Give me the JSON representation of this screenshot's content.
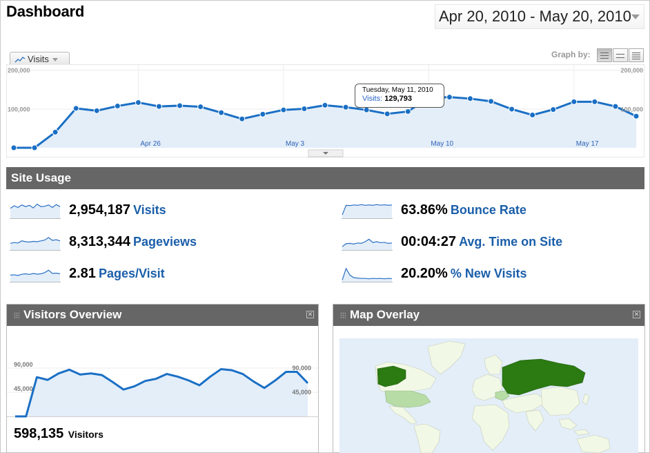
{
  "header": {
    "title": "Dashboard",
    "date_range": "Apr 20, 2010 - May 20, 2010"
  },
  "graph": {
    "metric_tab": "Visits",
    "graph_by_label": "Graph by:",
    "graph_by_options": [
      "day",
      "week",
      "month"
    ],
    "selected_graph_by": "day",
    "tooltip": {
      "date": "Tuesday, May 11, 2010",
      "metric": "Visits:",
      "value": "129,793"
    }
  },
  "chart_data": [
    {
      "type": "area",
      "name": "main-visits",
      "x": [
        "Apr 20",
        "Apr 21",
        "Apr 22",
        "Apr 23",
        "Apr 24",
        "Apr 25",
        "Apr 26",
        "Apr 27",
        "Apr 28",
        "Apr 29",
        "Apr 30",
        "May 1",
        "May 2",
        "May 3",
        "May 4",
        "May 5",
        "May 6",
        "May 7",
        "May 8",
        "May 9",
        "May 10",
        "May 11",
        "May 12",
        "May 13",
        "May 14",
        "May 15",
        "May 16",
        "May 17",
        "May 18",
        "May 19",
        "May 20"
      ],
      "series": [
        {
          "values": [
            0,
            0,
            40000,
            101000,
            95000,
            107000,
            116000,
            106000,
            108000,
            105000,
            90000,
            74000,
            86000,
            97000,
            100000,
            109000,
            104000,
            97000,
            87000,
            93000,
            128000,
            129793,
            126000,
            119000,
            99000,
            84000,
            98000,
            118000,
            118000,
            106000,
            81000
          ]
        }
      ],
      "x_tick_labels": [
        "Apr 26",
        "May 3",
        "May 10",
        "May 17"
      ],
      "y_tick_labels": [
        "100,000",
        "200,000"
      ],
      "ylim": [
        0,
        200000
      ],
      "grid": true,
      "colors": {
        "line": "#1a6fc4",
        "fill": "#e3eef9"
      }
    },
    {
      "type": "area",
      "name": "visitors-overview",
      "series": [
        {
          "values": [
            0,
            0,
            73000,
            68000,
            80000,
            87000,
            78000,
            80000,
            77000,
            64000,
            50000,
            56000,
            66000,
            70000,
            79000,
            74000,
            67000,
            58000,
            74000,
            88000,
            86000,
            79000,
            65000,
            53000,
            67000,
            83000,
            83000,
            62000
          ]
        }
      ],
      "y_tick_labels": [
        "45,000",
        "90,000"
      ],
      "ylim": [
        0,
        90000
      ],
      "grid": true,
      "colors": {
        "line": "#1a6fc4",
        "fill": "#e3eef9"
      }
    }
  ],
  "site_usage": {
    "title": "Site Usage",
    "metrics": [
      {
        "value": "2,954,187",
        "label": "Visits",
        "spark": [
          0.6,
          0.75,
          0.65,
          0.8,
          0.7,
          0.78,
          0.62,
          0.85,
          0.7,
          0.72,
          0.8,
          0.65,
          0.82,
          0.7
        ]
      },
      {
        "value": "8,313,344",
        "label": "Pageviews",
        "spark": [
          0.4,
          0.45,
          0.42,
          0.55,
          0.5,
          0.48,
          0.52,
          0.5,
          0.55,
          0.6,
          0.75,
          0.58,
          0.62,
          0.55
        ]
      },
      {
        "value": "2.81",
        "label": "Pages/Visit",
        "spark": [
          0.4,
          0.42,
          0.38,
          0.45,
          0.48,
          0.44,
          0.5,
          0.46,
          0.48,
          0.55,
          0.7,
          0.5,
          0.52,
          0.48
        ]
      },
      {
        "value": "63.86%",
        "label": "Bounce Rate",
        "spark": [
          0.2,
          0.78,
          0.76,
          0.8,
          0.78,
          0.82,
          0.78,
          0.8,
          0.78,
          0.82,
          0.79,
          0.81,
          0.78,
          0.8
        ]
      },
      {
        "value": "00:04:27",
        "label": "Avg. Time on Site",
        "spark": [
          0.2,
          0.38,
          0.4,
          0.36,
          0.42,
          0.4,
          0.5,
          0.65,
          0.45,
          0.5,
          0.44,
          0.46,
          0.4,
          0.42
        ]
      },
      {
        "value": "20.20%",
        "label": "% New Visits",
        "spark": [
          0.1,
          0.8,
          0.4,
          0.25,
          0.22,
          0.2,
          0.2,
          0.18,
          0.2,
          0.19,
          0.2,
          0.18,
          0.2,
          0.19
        ]
      }
    ]
  },
  "visitors_overview": {
    "title": "Visitors Overview",
    "total": "598,135",
    "total_label": "Visitors"
  },
  "map_overlay": {
    "title": "Map Overlay",
    "colors": {
      "ocean": "#e3eef9",
      "land": "#f2f8e6",
      "mid": "#b8dca6",
      "high": "#2b7a12",
      "border": "#c5cdb5"
    }
  }
}
